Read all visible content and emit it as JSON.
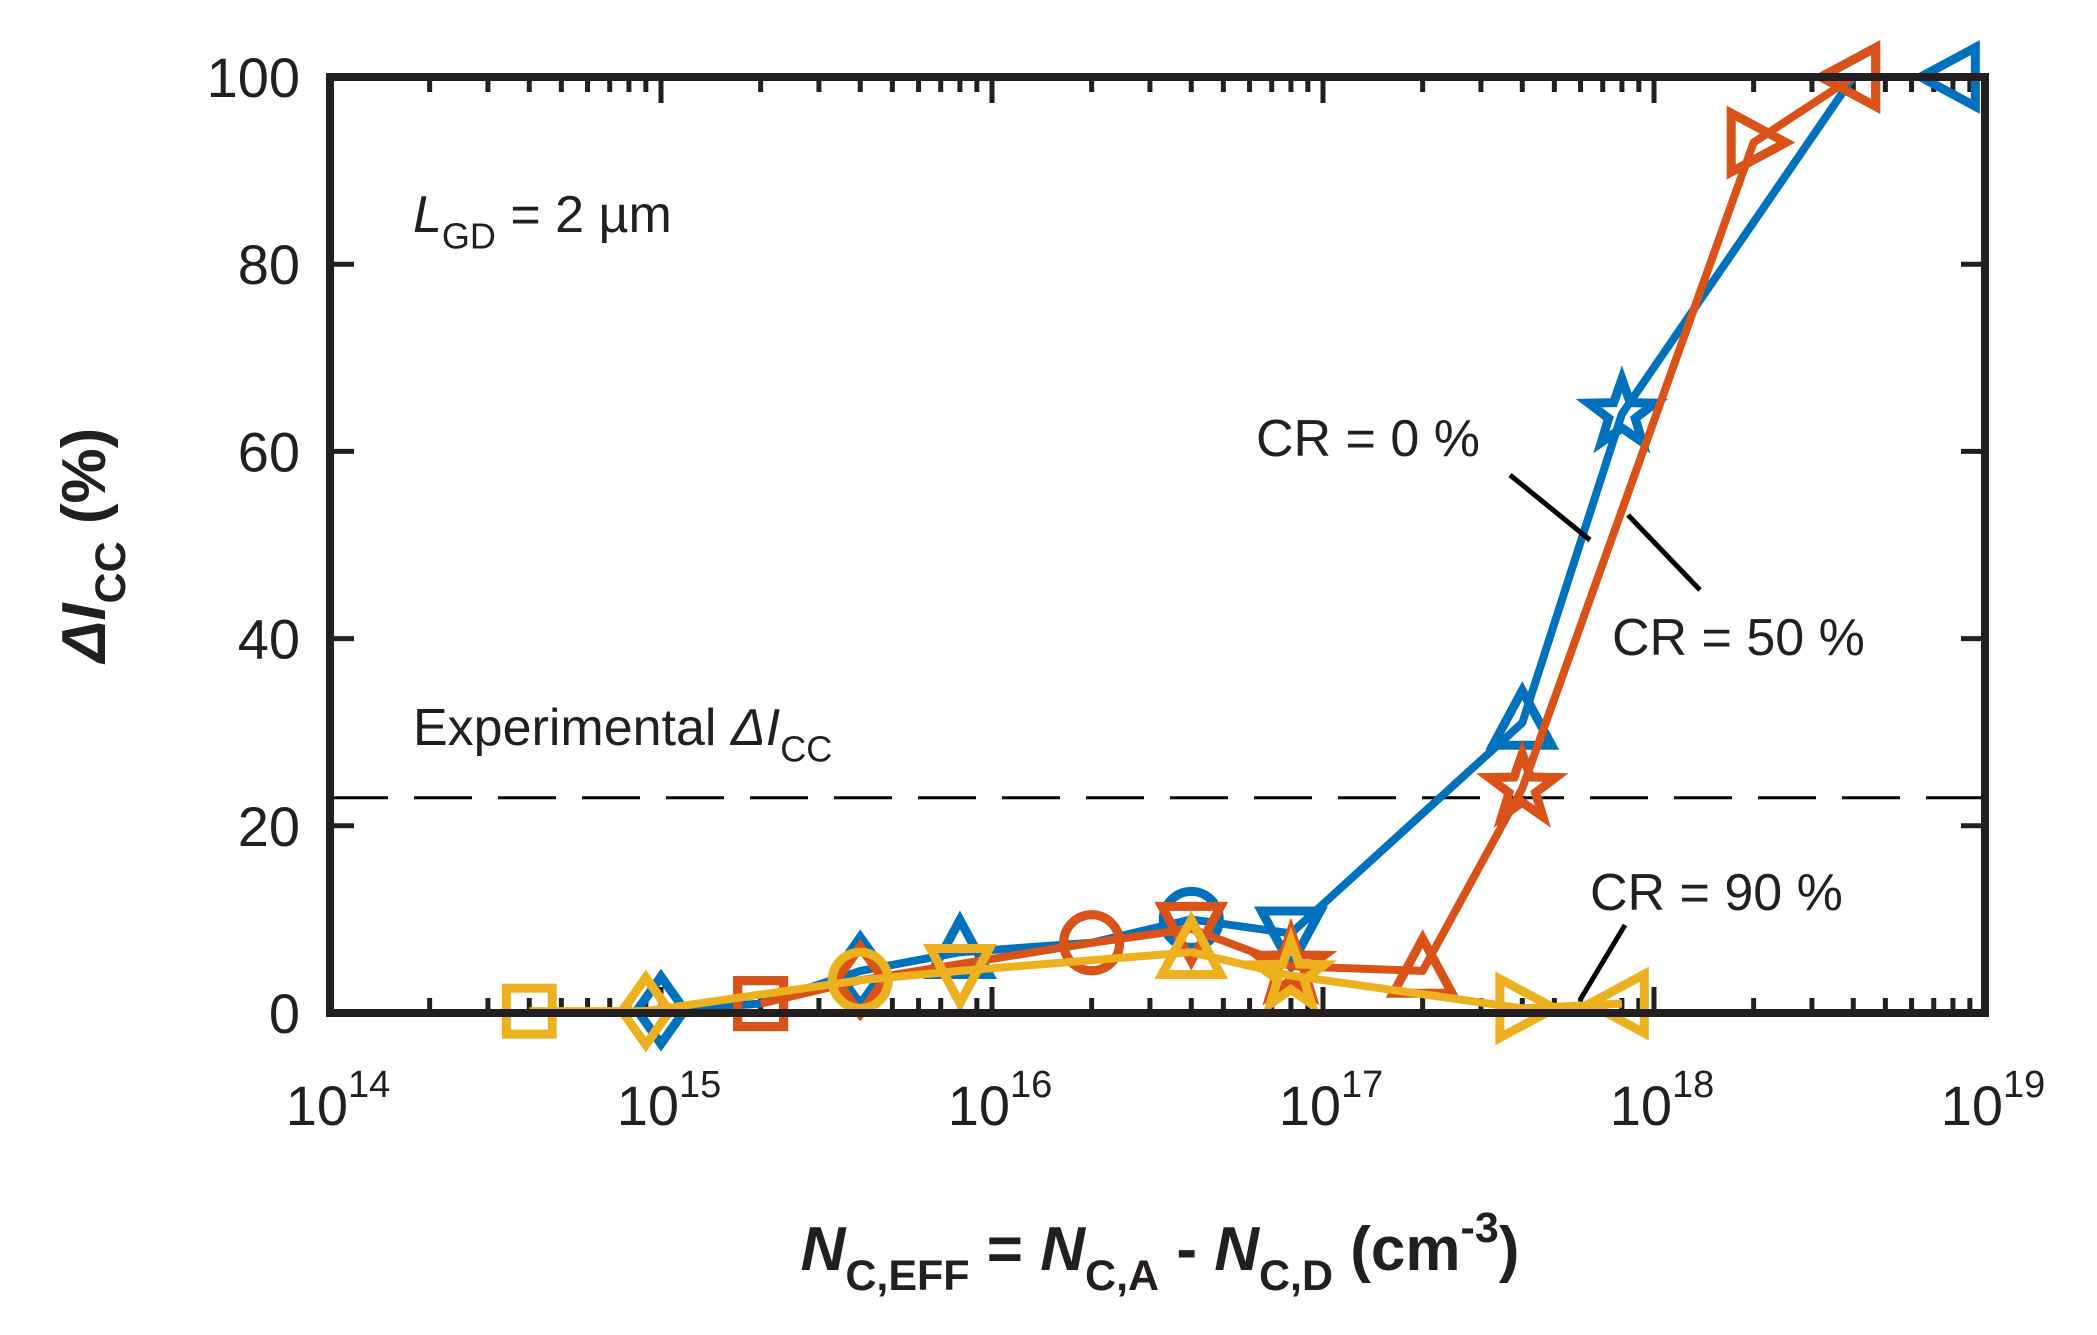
{
  "chart_data": {
    "type": "line",
    "x_scale": "log",
    "xlim": [
      100000000000000.0,
      1e+19
    ],
    "ylim": [
      0,
      100
    ],
    "x_ticks": [
      100000000000000.0,
      1000000000000000.0,
      1e+16,
      1e+17,
      1e+18,
      1e+19
    ],
    "x_tick_labels": [
      {
        "base": "10",
        "exp": "14"
      },
      {
        "base": "10",
        "exp": "15"
      },
      {
        "base": "10",
        "exp": "16"
      },
      {
        "base": "10",
        "exp": "17"
      },
      {
        "base": "10",
        "exp": "18"
      },
      {
        "base": "10",
        "exp": "19"
      }
    ],
    "y_ticks": [
      0,
      20,
      40,
      60,
      80,
      100
    ],
    "y_tick_labels": [
      "0",
      "20",
      "40",
      "60",
      "80",
      "100"
    ],
    "xlabel": {
      "parts": [
        {
          "t": "N",
          "italic": true
        },
        {
          "t": "C,EFF",
          "sub": true
        },
        {
          "t": " = "
        },
        {
          "t": "N",
          "italic": true
        },
        {
          "t": "C,A",
          "sub": true
        },
        {
          "t": " - "
        },
        {
          "t": "N",
          "italic": true
        },
        {
          "t": "C,D",
          "sub": true
        },
        {
          "t": " (cm"
        },
        {
          "t": "-3",
          "sup": true
        },
        {
          "t": ")"
        }
      ]
    },
    "ylabel": {
      "parts": [
        {
          "t": "ΔI",
          "italic": true
        },
        {
          "t": "CC",
          "sub": true
        },
        {
          "t": " (%)"
        }
      ]
    },
    "grid": false,
    "legend": "none",
    "reference_line": {
      "y": 23,
      "style": "dashed",
      "color": "#000000"
    },
    "annotations": [
      {
        "id": "lgd",
        "parts": [
          {
            "t": "L",
            "italic": true
          },
          {
            "t": "GD",
            "sub": true
          },
          {
            "t": " = 2 µm"
          }
        ]
      },
      {
        "id": "experimental",
        "parts": [
          {
            "t": "Experimental "
          },
          {
            "t": "ΔI",
            "italic": true
          },
          {
            "t": "CC",
            "sub": true
          }
        ]
      },
      {
        "id": "cr0",
        "parts": [
          {
            "t": "CR = 0 %"
          }
        ]
      },
      {
        "id": "cr50",
        "parts": [
          {
            "t": "CR = 50 %"
          }
        ]
      },
      {
        "id": "cr90",
        "parts": [
          {
            "t": "CR = 90 %"
          }
        ]
      }
    ],
    "series": [
      {
        "color": "#0072bd",
        "x": [
          1000000000000000.0,
          2000000000000000.0,
          4000000000000000.0,
          8000000000000000.0,
          2e+16,
          4e+16,
          8e+16,
          4e+17,
          8e+17,
          4e+18,
          8e+18
        ],
        "y": [
          0.3,
          1,
          4.5,
          6.5,
          7.5,
          10,
          8.5,
          31,
          64,
          100,
          100
        ],
        "markers": [
          "diamond",
          "square",
          "diamond",
          "triangle-up",
          "circle",
          "circle",
          "triangle-down",
          "triangle-up",
          "star",
          "triangle-left",
          "triangle-left"
        ]
      },
      {
        "color": "#d95319",
        "x": [
          2000000000000000.0,
          4000000000000000.0,
          2e+16,
          4e+16,
          8e+16,
          2e+17,
          4e+17,
          2e+18,
          4e+18
        ],
        "y": [
          1,
          3.5,
          7.5,
          9,
          5,
          4.5,
          24,
          93,
          100
        ],
        "markers": [
          "square",
          "diamond",
          "circle",
          "triangle-down",
          "star",
          "triangle-up",
          "star",
          "triangle-right",
          "triangle-left"
        ]
      },
      {
        "color": "#edb120",
        "x": [
          400000000000000.0,
          900000000000000.0,
          4000000000000000.0,
          8000000000000000.0,
          4e+16,
          8e+16,
          4e+17,
          8e+17
        ],
        "y": [
          0.2,
          0.2,
          3.5,
          4.5,
          6.5,
          4,
          0.5,
          1
        ],
        "markers": [
          "square",
          "diamond",
          "circle",
          "triangle-down",
          "triangle-up",
          "star",
          "triangle-right",
          "triangle-left"
        ]
      }
    ]
  }
}
